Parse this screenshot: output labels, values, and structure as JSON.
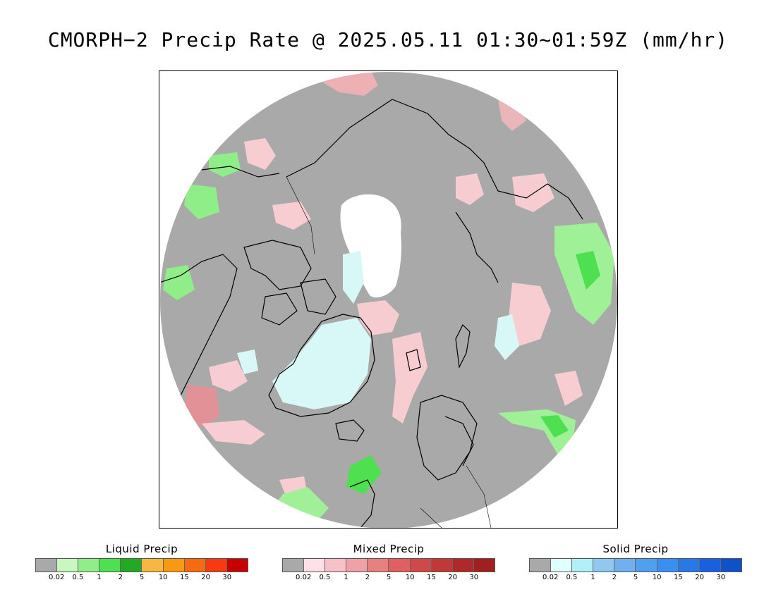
{
  "title": "CMORPH−2 Precip Rate @ 2025.05.11 01:30~01:59Z (mm/hr)",
  "map": {
    "projection": "north-polar-stereographic",
    "colors": {
      "background_no_precip": "#a9a9a9",
      "missing_white": "#ffffff",
      "coastline": "#000000"
    }
  },
  "legends": [
    {
      "id": "liquid",
      "title": "Liquid Precip",
      "colors": [
        "#a9a9a9",
        "#c8f7c0",
        "#90ee88",
        "#4ee050",
        "#22aa22",
        "#f8b840",
        "#f89a10",
        "#f86a10",
        "#f83a10",
        "#c80000"
      ],
      "ticks": [
        "0.02",
        "0.5",
        "1",
        "2",
        "5",
        "10",
        "15",
        "20",
        "30"
      ]
    },
    {
      "id": "mixed",
      "title": "Mixed Precip",
      "colors": [
        "#a9a9a9",
        "#ffe0e8",
        "#f8c0c8",
        "#f0a0a8",
        "#e88080",
        "#e06060",
        "#d04848",
        "#c03838",
        "#b02828",
        "#a02020"
      ],
      "ticks": [
        "0.02",
        "0.5",
        "1",
        "2",
        "5",
        "10",
        "15",
        "20",
        "30"
      ]
    },
    {
      "id": "solid",
      "title": "Solid Precip",
      "colors": [
        "#a9a9a9",
        "#e0ffff",
        "#b0f0f8",
        "#90c8f0",
        "#70b0f0",
        "#50a0f0",
        "#3890f0",
        "#2878e8",
        "#1860e0",
        "#1050c8"
      ],
      "ticks": [
        "0.02",
        "0.5",
        "1",
        "2",
        "5",
        "10",
        "15",
        "20",
        "30"
      ]
    }
  ]
}
